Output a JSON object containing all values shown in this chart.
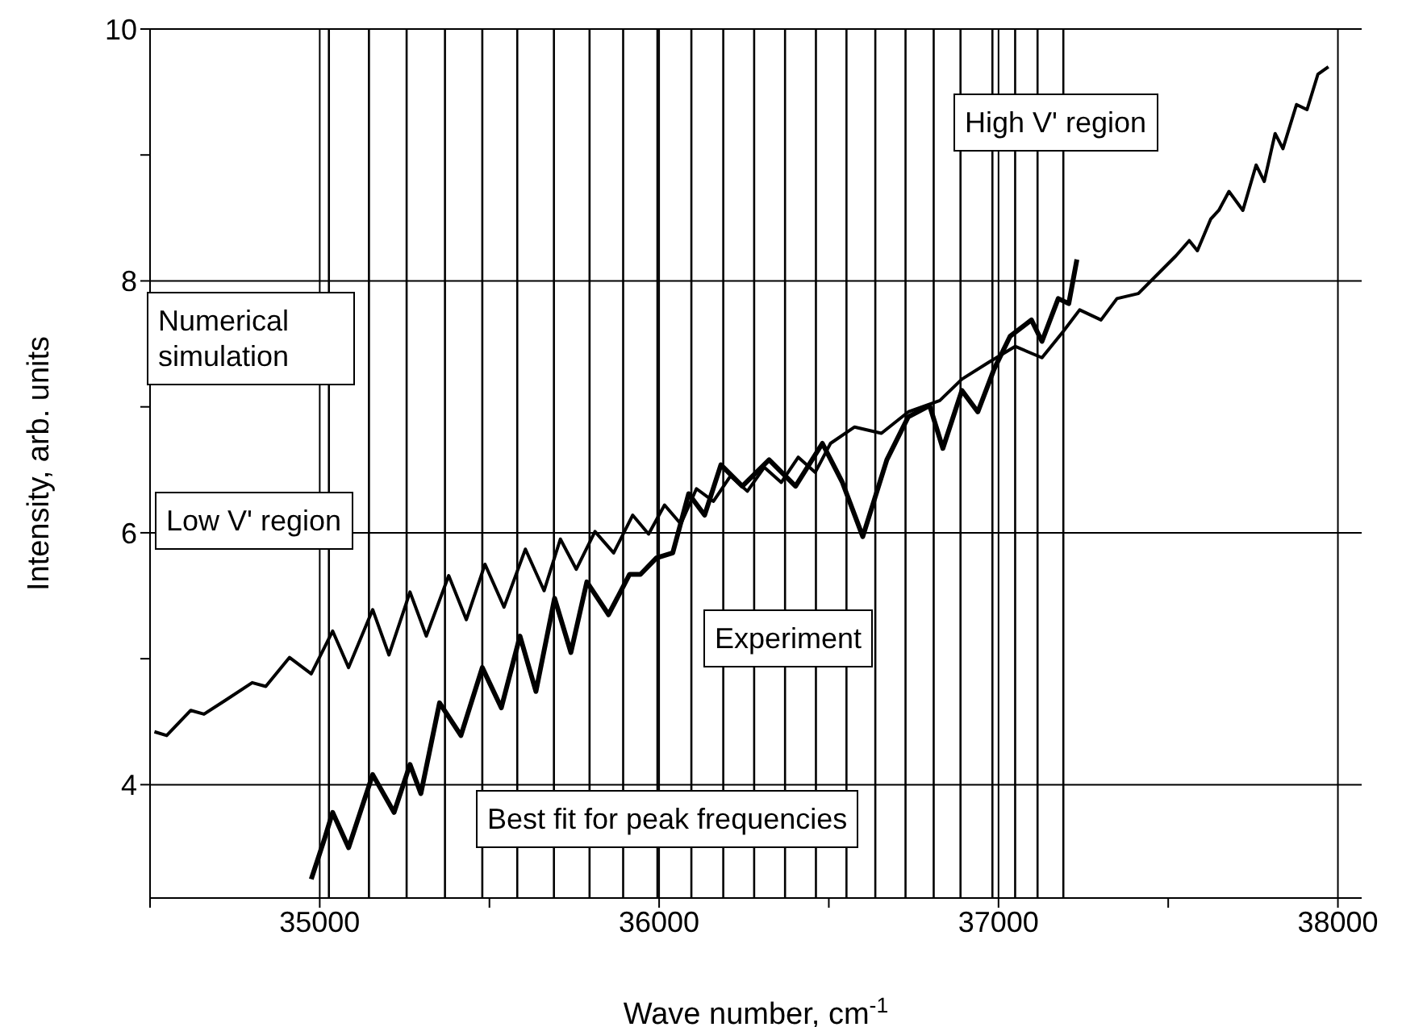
{
  "chart_data": {
    "type": "line",
    "xlabel": "Wave number, cm$^{-1}$",
    "ylabel": "Intensity, arb. units",
    "xlim": [
      34500,
      38070
    ],
    "ylim": [
      3.1,
      10
    ],
    "xticks": [
      {
        "value": 34500,
        "label": null
      },
      35000,
      {
        "value": 35500,
        "label": null
      },
      36000,
      {
        "value": 36500,
        "label": null
      },
      37000,
      {
        "value": 37500,
        "label": null
      },
      38000
    ],
    "yticks": [
      4,
      {
        "value": 5,
        "label": null
      },
      6,
      {
        "value": 7,
        "label": null
      },
      8,
      {
        "value": 9,
        "label": null
      },
      10
    ],
    "grid": true,
    "marker": "none",
    "line_style": "solid",
    "series": [
      {
        "name": "Numerical simulation",
        "color": "#000000",
        "x": [
          34513,
          34549,
          34620,
          34659,
          34722,
          34801,
          34841,
          34911,
          34975,
          35038,
          35085,
          35156,
          35204,
          35266,
          35314,
          35380,
          35432,
          35487,
          35543,
          35606,
          35661,
          35709,
          35756,
          35811,
          35866,
          35922,
          35969,
          36016,
          36064,
          36110,
          36160,
          36210,
          36260,
          36310,
          36360,
          36410,
          36460,
          36505,
          36576,
          36655,
          36734,
          36827,
          36892,
          36969,
          37049,
          37128,
          37191,
          37239,
          37302,
          37349,
          37412,
          37475,
          37523,
          37562,
          37586,
          37625,
          37649,
          37679,
          37720,
          37759,
          37783,
          37815,
          37838,
          37878,
          37909,
          37941,
          37972
        ],
        "values": [
          4.42,
          4.39,
          4.59,
          4.56,
          4.67,
          4.81,
          4.78,
          5.01,
          4.88,
          5.22,
          4.93,
          5.39,
          5.03,
          5.53,
          5.18,
          5.66,
          5.31,
          5.75,
          5.41,
          5.87,
          5.54,
          5.95,
          5.71,
          6.01,
          5.84,
          6.14,
          5.99,
          6.22,
          6.07,
          6.35,
          6.25,
          6.45,
          6.33,
          6.52,
          6.4,
          6.6,
          6.48,
          6.71,
          6.84,
          6.79,
          6.96,
          7.05,
          7.22,
          7.35,
          7.48,
          7.39,
          7.6,
          7.77,
          7.69,
          7.86,
          7.9,
          8.07,
          8.2,
          8.32,
          8.24,
          8.49,
          8.56,
          8.71,
          8.56,
          8.92,
          8.79,
          9.17,
          9.05,
          9.4,
          9.36,
          9.64,
          9.7
        ]
      },
      {
        "name": "Experiment",
        "color": "#000000",
        "x": [
          34975,
          35014,
          35038,
          35085,
          35156,
          35219,
          35266,
          35298,
          35353,
          35416,
          35479,
          35535,
          35590,
          35637,
          35692,
          35740,
          35787,
          35851,
          35913,
          35945,
          35992,
          36040,
          36087,
          36134,
          36182,
          36245,
          36324,
          36402,
          36481,
          36540,
          36600,
          36671,
          36734,
          36797,
          36836,
          36892,
          36939,
          36987,
          37034,
          37097,
          37128,
          37176,
          37207,
          37231
        ],
        "values": [
          3.25,
          3.57,
          3.78,
          3.5,
          4.08,
          3.78,
          4.16,
          3.93,
          4.65,
          4.39,
          4.93,
          4.61,
          5.18,
          4.74,
          5.48,
          5.05,
          5.61,
          5.35,
          5.67,
          5.67,
          5.8,
          5.84,
          6.31,
          6.14,
          6.54,
          6.37,
          6.58,
          6.37,
          6.71,
          6.4,
          5.97,
          6.58,
          6.92,
          7.01,
          6.67,
          7.13,
          6.96,
          7.3,
          7.56,
          7.69,
          7.52,
          7.86,
          7.82,
          8.17
        ]
      }
    ],
    "ref_lines": [
      {
        "axis": "x",
        "value": 35027,
        "color": "#000000"
      },
      {
        "axis": "x",
        "value": 35145,
        "color": "#000000"
      },
      {
        "axis": "x",
        "value": 35256,
        "color": "#000000"
      },
      {
        "axis": "x",
        "value": 35369,
        "color": "#000000"
      },
      {
        "axis": "x",
        "value": 35479,
        "color": "#000000"
      },
      {
        "axis": "x",
        "value": 35582,
        "color": "#000000"
      },
      {
        "axis": "x",
        "value": 35690,
        "color": "#000000"
      },
      {
        "axis": "x",
        "value": 35795,
        "color": "#000000"
      },
      {
        "axis": "x",
        "value": 35894,
        "color": "#000000"
      },
      {
        "axis": "x",
        "value": 35995,
        "color": "#000000"
      },
      {
        "axis": "x",
        "value": 36095,
        "color": "#000000"
      },
      {
        "axis": "x",
        "value": 36189,
        "color": "#000000"
      },
      {
        "axis": "x",
        "value": 36280,
        "color": "#000000"
      },
      {
        "axis": "x",
        "value": 36371,
        "color": "#000000"
      },
      {
        "axis": "x",
        "value": 36462,
        "color": "#000000"
      },
      {
        "axis": "x",
        "value": 36552,
        "color": "#000000"
      },
      {
        "axis": "x",
        "value": 36637,
        "color": "#000000"
      },
      {
        "axis": "x",
        "value": 36726,
        "color": "#000000"
      },
      {
        "axis": "x",
        "value": 36809,
        "color": "#000000"
      },
      {
        "axis": "x",
        "value": 36888,
        "color": "#000000"
      },
      {
        "axis": "x",
        "value": 36982,
        "color": "#000000"
      },
      {
        "axis": "x",
        "value": 37049,
        "color": "#000000"
      },
      {
        "axis": "x",
        "value": 37115,
        "color": "#000000"
      },
      {
        "axis": "x",
        "value": 37191,
        "color": "#000000"
      }
    ],
    "annotations": [
      "Low V' region",
      "High V' region",
      "Best fit for peak frequencies"
    ]
  }
}
